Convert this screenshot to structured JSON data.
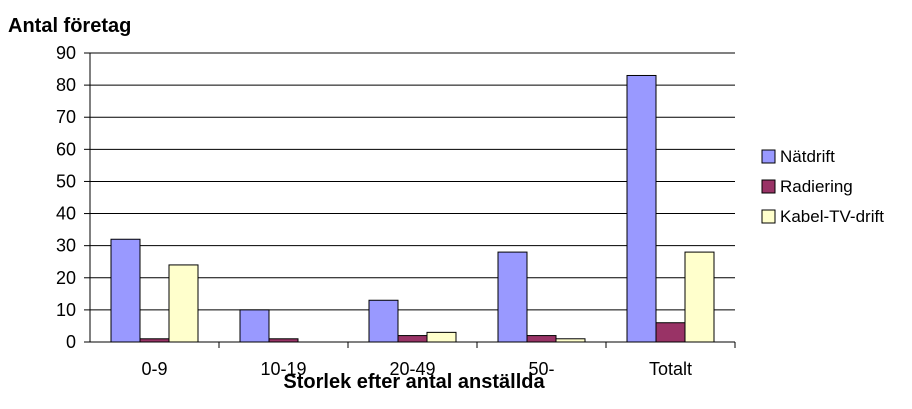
{
  "chart_data": {
    "type": "bar",
    "ylabel": "Antal företag",
    "xlabel": "Storlek efter antal anställda",
    "categories": [
      "0-9",
      "10-19",
      "20-49",
      "50-",
      "Totalt"
    ],
    "ylim": [
      0,
      90
    ],
    "yticks": [
      0,
      10,
      20,
      30,
      40,
      50,
      60,
      70,
      80,
      90
    ],
    "grid": true,
    "legend_position": "right",
    "series": [
      {
        "name": "Nätdrift",
        "color": "#9999FF",
        "values": [
          32,
          10,
          13,
          28,
          83
        ]
      },
      {
        "name": "Radiering",
        "color": "#993366",
        "values": [
          1,
          1,
          2,
          2,
          6
        ]
      },
      {
        "name": "Kabel-TV-drift",
        "color": "#FFFFCC",
        "values": [
          24,
          0,
          3,
          1,
          28
        ]
      }
    ]
  }
}
